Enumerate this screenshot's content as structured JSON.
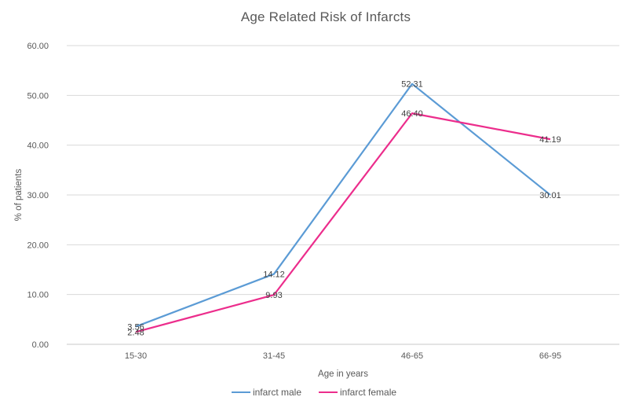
{
  "chart_data": {
    "type": "line",
    "title": "Age Related Risk of Infarcts",
    "xlabel": "Age in years",
    "ylabel": "% of patients",
    "categories": [
      "15-30",
      "31-45",
      "46-65",
      "66-95"
    ],
    "series": [
      {
        "name": "infarct male",
        "color": "#5B9BD5",
        "values": [
          3.56,
          14.12,
          52.31,
          30.01
        ]
      },
      {
        "name": "infarct female",
        "color": "#EC2D8C",
        "values": [
          2.48,
          9.93,
          46.4,
          41.19
        ]
      }
    ],
    "ylim": [
      0,
      60
    ],
    "ytick_step": 10,
    "tick_decimals": 2,
    "data_label_decimals": 2,
    "grid": "on",
    "legend_position": "bottom",
    "colors": {
      "grid": "#D9D9D9",
      "axis": "#C8C8C8",
      "tick_text": "#595959",
      "data_label_text": "#404040",
      "title_text": "#595959"
    }
  }
}
